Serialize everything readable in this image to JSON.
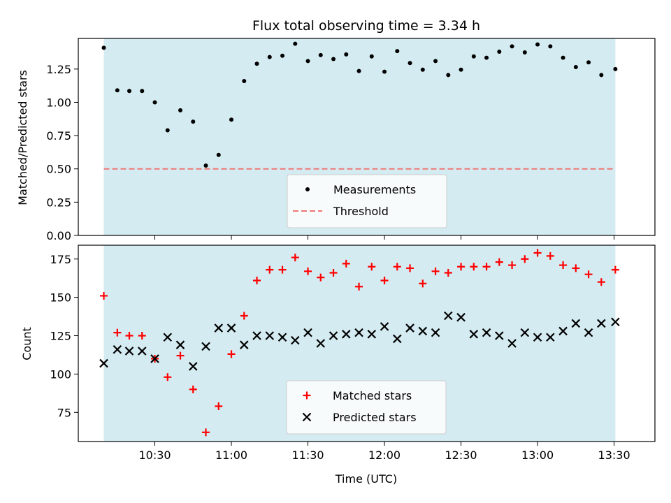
{
  "chart_data": {
    "title": "Flux total observing time = 3.34 h",
    "xlabel": "Time (UTC)",
    "x_ticks": [
      "10:30",
      "11:00",
      "11:30",
      "12:00",
      "12:30",
      "13:00",
      "13:30"
    ],
    "x_tick_minutes": [
      630,
      660,
      690,
      720,
      750,
      780,
      810
    ],
    "x_range_minutes": [
      600,
      826
    ],
    "observing_window_minutes": [
      610,
      810.5
    ],
    "shade_color": "#d4ebf1",
    "panels": [
      {
        "type": "scatter",
        "ylabel": "Matched/Predicted stars",
        "ylim": [
          0,
          1.48
        ],
        "y_ticks": [
          0.0,
          0.25,
          0.5,
          0.75,
          1.0,
          1.25
        ],
        "y_tick_labels": [
          "0.00",
          "0.25",
          "0.50",
          "0.75",
          "1.00",
          "1.25"
        ],
        "x": [
          610.0,
          615.3,
          620.0,
          625.0,
          630.0,
          635.0,
          640.0,
          645.0,
          650.0,
          655.0,
          660.0,
          665.0,
          670.0,
          675.0,
          680.0,
          685.0,
          690.0,
          695.0,
          700.0,
          705.0,
          710.0,
          715.0,
          720.0,
          725.0,
          730.0,
          735.0,
          740.0,
          745.0,
          750.0,
          755.0,
          760.0,
          765.0,
          770.0,
          775.0,
          780.0,
          785.0,
          790.0,
          795.0,
          800.0,
          805.0,
          810.5
        ],
        "series": [
          {
            "name": "Measurements",
            "marker": "dot",
            "color": "#000000",
            "values": [
              1.41,
              1.09,
              1.085,
              1.085,
              1.0,
              0.79,
              0.94,
              0.855,
              0.525,
              0.605,
              0.87,
              1.16,
              1.29,
              1.34,
              1.35,
              1.44,
              1.31,
              1.355,
              1.325,
              1.36,
              1.235,
              1.345,
              1.23,
              1.385,
              1.295,
              1.245,
              1.31,
              1.205,
              1.245,
              1.345,
              1.335,
              1.38,
              1.42,
              1.375,
              1.435,
              1.42,
              1.335,
              1.265,
              1.3,
              1.205,
              1.25
            ]
          }
        ],
        "threshold": {
          "name": "Threshold",
          "value": 0.5,
          "color": "#ef7876"
        },
        "legend_placement": "lower-center"
      },
      {
        "type": "scatter",
        "ylabel": "Count",
        "ylim": [
          56,
          184
        ],
        "y_ticks": [
          75,
          100,
          125,
          150,
          175
        ],
        "y_tick_labels": [
          "75",
          "100",
          "125",
          "150",
          "175"
        ],
        "x": [
          610.0,
          615.3,
          620.0,
          625.0,
          630.0,
          635.0,
          640.0,
          645.0,
          650.0,
          655.0,
          660.0,
          665.0,
          670.0,
          675.0,
          680.0,
          685.0,
          690.0,
          695.0,
          700.0,
          705.0,
          710.0,
          715.0,
          720.0,
          725.0,
          730.0,
          735.0,
          740.0,
          745.0,
          750.0,
          755.0,
          760.0,
          765.0,
          770.0,
          775.0,
          780.0,
          785.0,
          790.0,
          795.0,
          800.0,
          805.0,
          810.5
        ],
        "series": [
          {
            "name": "Matched stars",
            "marker": "plus",
            "color": "#ff0000",
            "values": [
              151,
              127,
              125,
              125,
              110,
              98,
              112,
              90,
              62,
              79,
              113,
              138,
              161,
              168,
              168,
              176,
              167,
              163,
              166,
              172,
              157,
              170,
              161,
              170,
              169,
              159,
              167,
              166,
              170,
              170,
              170,
              173,
              171,
              175,
              179,
              177,
              171,
              169,
              165,
              160,
              168
            ]
          },
          {
            "name": "Predicted stars",
            "marker": "x",
            "color": "#000000",
            "values": [
              107,
              116,
              115,
              115,
              110,
              124,
              119,
              105,
              118,
              130,
              130,
              119,
              125,
              125,
              124,
              122,
              127,
              120,
              125,
              126,
              127,
              126,
              131,
              123,
              130,
              128,
              127,
              138,
              137,
              126,
              127,
              125,
              120,
              127,
              124,
              124,
              128,
              133,
              127,
              133,
              134
            ]
          }
        ],
        "legend_placement": "lower-center"
      }
    ]
  }
}
